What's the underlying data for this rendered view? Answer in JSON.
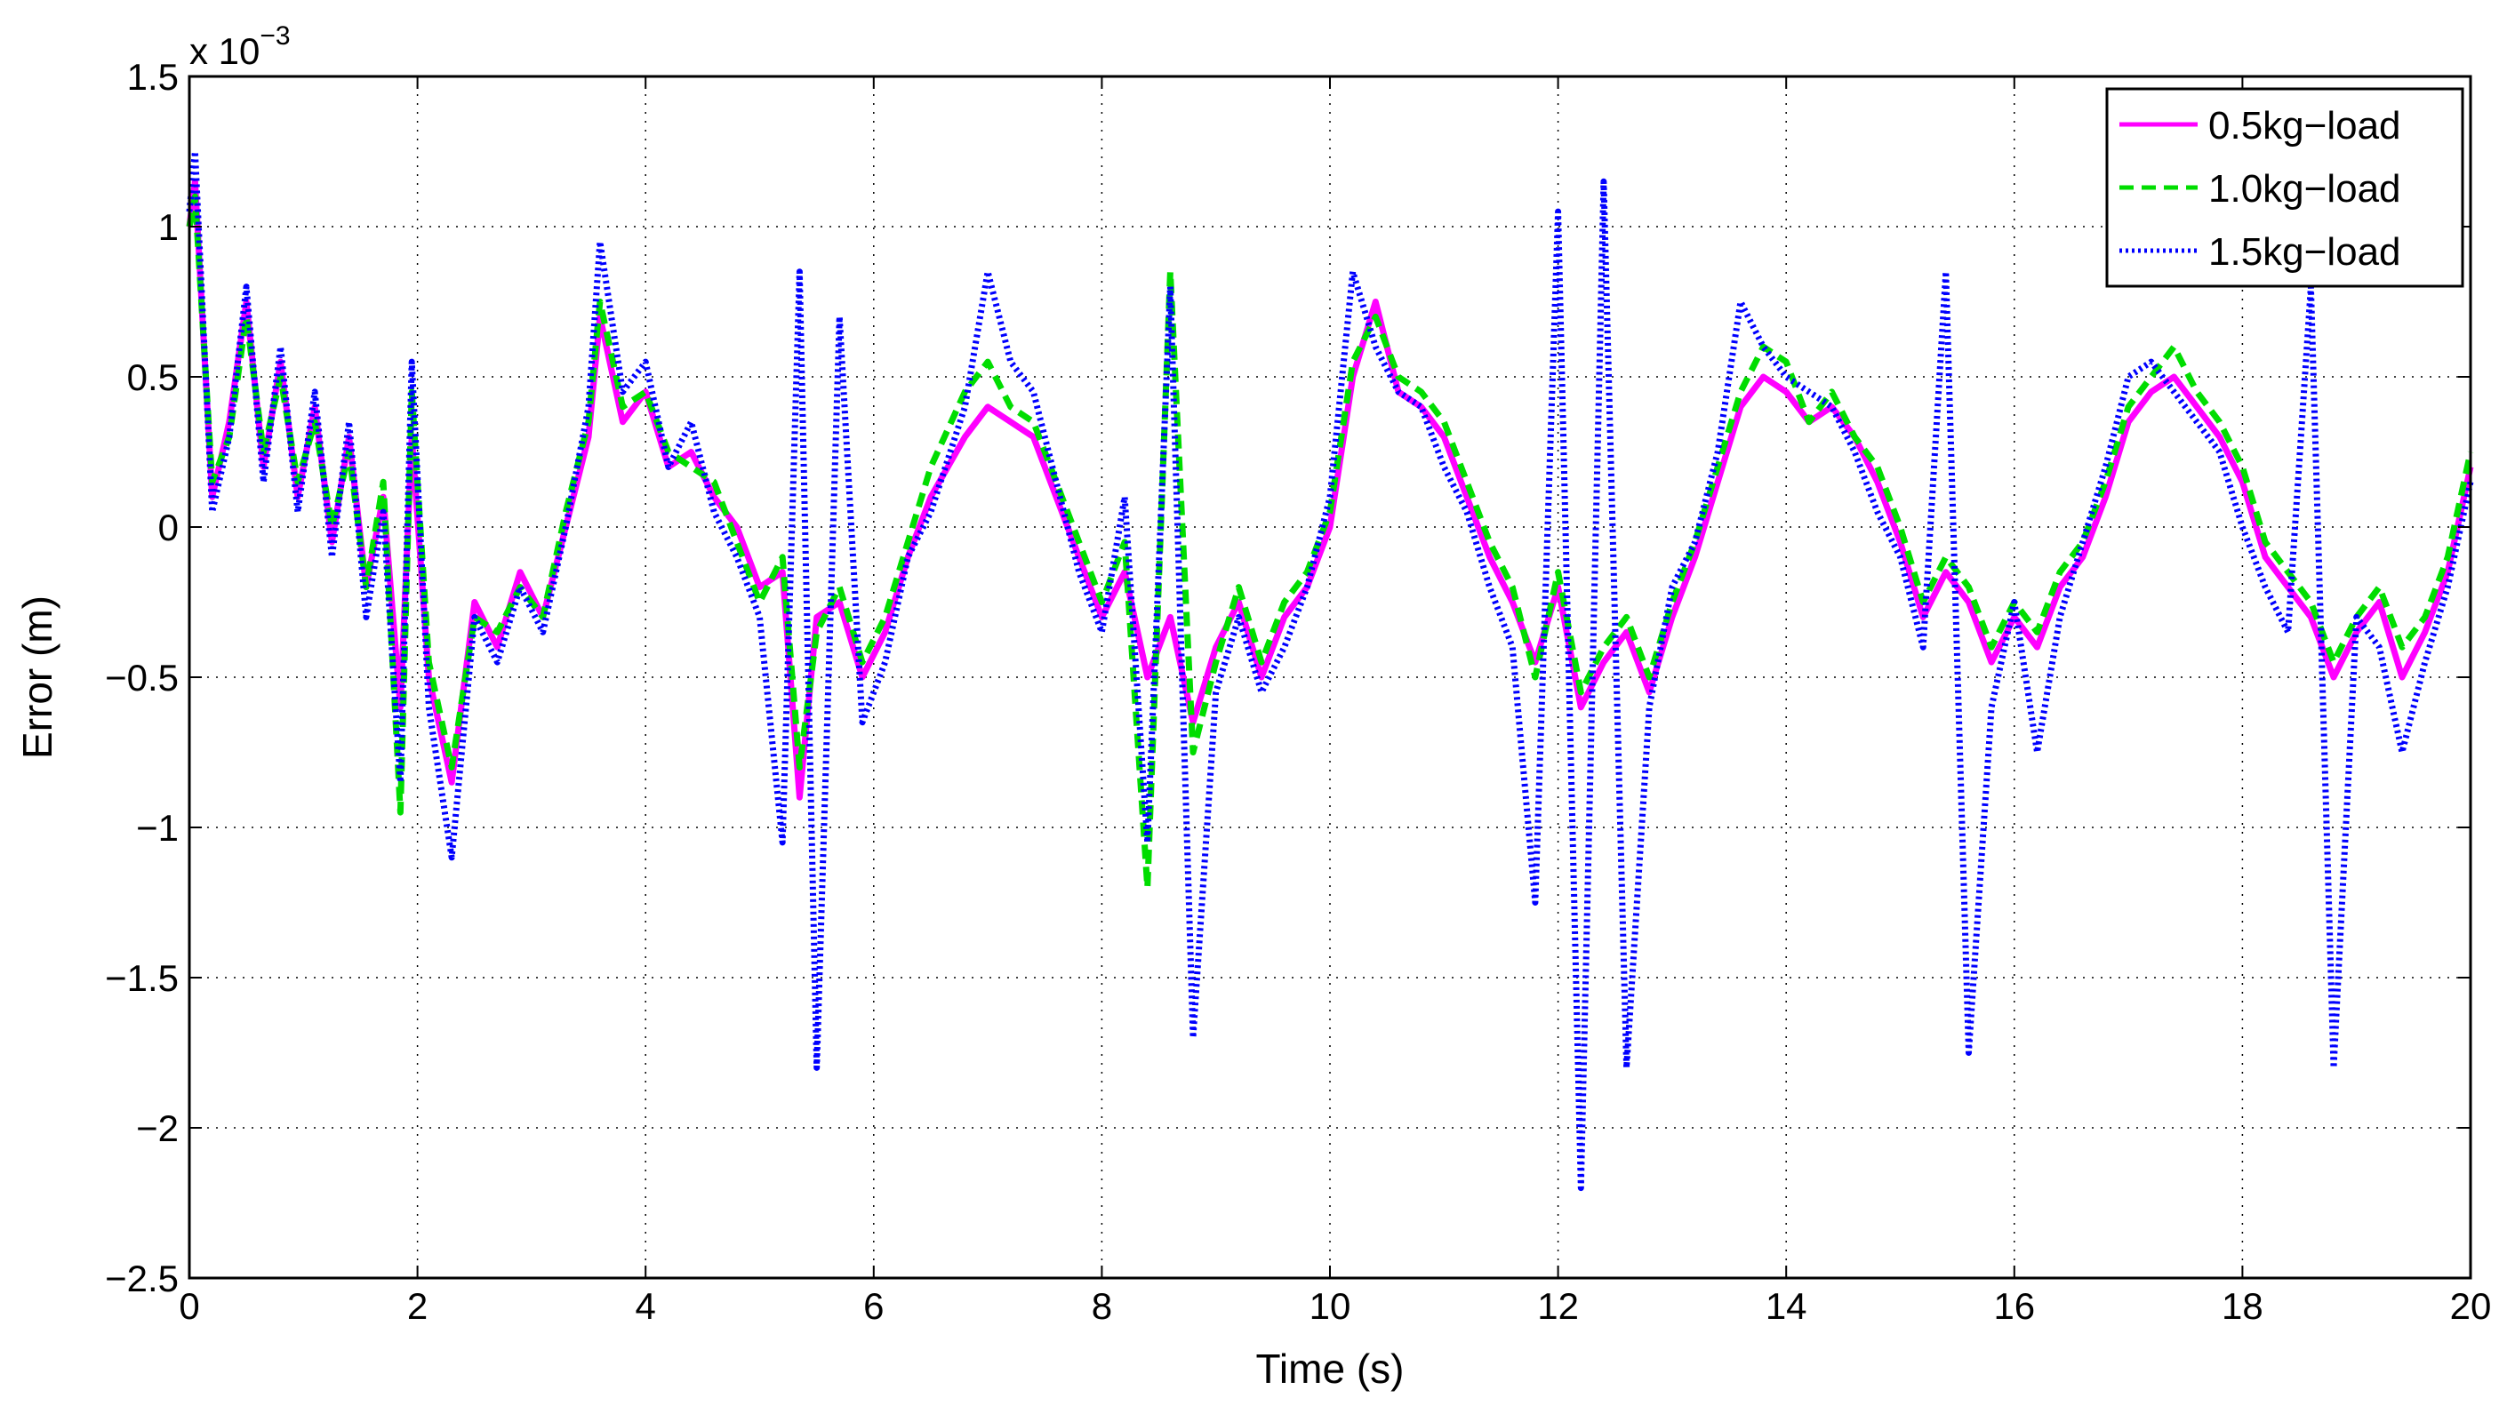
{
  "chart_data": {
    "type": "line",
    "title": "",
    "xlabel": "Time (s)",
    "ylabel": "Error (m)",
    "y_exponent_label": "x 10",
    "y_exponent_power": "−3",
    "xlim": [
      0,
      20
    ],
    "ylim": [
      -2.5,
      1.5
    ],
    "x_ticks": [
      0,
      2,
      4,
      6,
      8,
      10,
      12,
      14,
      16,
      18,
      20
    ],
    "x_tick_labels": [
      "0",
      "2",
      "4",
      "6",
      "8",
      "10",
      "12",
      "14",
      "16",
      "18",
      "20"
    ],
    "y_ticks": [
      -2.5,
      -2,
      -1.5,
      -1,
      -0.5,
      0,
      0.5,
      1,
      1.5
    ],
    "y_tick_labels": [
      "−2.5",
      "−2",
      "−1.5",
      "−1",
      "−0.5",
      "0",
      "0.5",
      "1",
      "1.5"
    ],
    "grid": true,
    "legend_position": "top-right",
    "series": [
      {
        "name": "0.5kg−load",
        "color": "#ff00ff",
        "style": "solid",
        "x": [
          0,
          0.05,
          0.2,
          0.35,
          0.5,
          0.65,
          0.8,
          0.95,
          1.1,
          1.25,
          1.4,
          1.55,
          1.7,
          1.85,
          1.95,
          2.1,
          2.3,
          2.5,
          2.7,
          2.9,
          3.1,
          3.3,
          3.5,
          3.6,
          3.8,
          4.0,
          4.2,
          4.4,
          4.6,
          4.8,
          5.0,
          5.2,
          5.35,
          5.5,
          5.7,
          5.9,
          6.1,
          6.3,
          6.5,
          6.8,
          7.0,
          7.2,
          7.4,
          7.6,
          7.8,
          8.0,
          8.2,
          8.4,
          8.6,
          8.8,
          9.0,
          9.2,
          9.4,
          9.6,
          9.8,
          10.0,
          10.2,
          10.4,
          10.6,
          10.8,
          11.0,
          11.2,
          11.4,
          11.6,
          11.8,
          12.0,
          12.2,
          12.4,
          12.6,
          12.8,
          13.0,
          13.2,
          13.4,
          13.6,
          13.8,
          14.0,
          14.2,
          14.4,
          14.6,
          14.8,
          15.0,
          15.2,
          15.4,
          15.6,
          15.8,
          16.0,
          16.2,
          16.4,
          16.6,
          16.8,
          17.0,
          17.2,
          17.4,
          17.6,
          17.8,
          18.0,
          18.2,
          18.4,
          18.6,
          18.8,
          19.0,
          19.2,
          19.4,
          19.6,
          19.8,
          20.0
        ],
        "y": [
          1.0,
          1.15,
          0.1,
          0.35,
          0.75,
          0.2,
          0.55,
          0.1,
          0.4,
          -0.05,
          0.3,
          -0.2,
          0.1,
          -0.6,
          0.3,
          -0.5,
          -0.85,
          -0.25,
          -0.4,
          -0.15,
          -0.3,
          0.0,
          0.3,
          0.7,
          0.35,
          0.45,
          0.2,
          0.25,
          0.1,
          0.0,
          -0.2,
          -0.15,
          -0.9,
          -0.3,
          -0.25,
          -0.5,
          -0.35,
          -0.1,
          0.1,
          0.3,
          0.4,
          0.35,
          0.3,
          0.1,
          -0.1,
          -0.3,
          -0.15,
          -0.5,
          -0.3,
          -0.65,
          -0.4,
          -0.25,
          -0.5,
          -0.3,
          -0.2,
          0.0,
          0.5,
          0.75,
          0.45,
          0.4,
          0.3,
          0.1,
          -0.1,
          -0.25,
          -0.45,
          -0.2,
          -0.6,
          -0.45,
          -0.35,
          -0.55,
          -0.3,
          -0.1,
          0.15,
          0.4,
          0.5,
          0.45,
          0.35,
          0.4,
          0.3,
          0.15,
          -0.05,
          -0.3,
          -0.15,
          -0.25,
          -0.45,
          -0.3,
          -0.4,
          -0.2,
          -0.1,
          0.1,
          0.35,
          0.45,
          0.5,
          0.4,
          0.3,
          0.15,
          -0.1,
          -0.2,
          -0.3,
          -0.5,
          -0.35,
          -0.25,
          -0.5,
          -0.35,
          -0.15,
          0.2
        ]
      },
      {
        "name": "1.0kg−load",
        "color": "#00dd00",
        "style": "dashed",
        "x": [
          0,
          0.05,
          0.2,
          0.35,
          0.5,
          0.65,
          0.8,
          0.95,
          1.1,
          1.25,
          1.4,
          1.55,
          1.7,
          1.85,
          1.95,
          2.1,
          2.3,
          2.5,
          2.7,
          2.9,
          3.1,
          3.3,
          3.5,
          3.6,
          3.8,
          4.0,
          4.2,
          4.4,
          4.6,
          4.8,
          5.0,
          5.2,
          5.35,
          5.5,
          5.7,
          5.9,
          6.1,
          6.3,
          6.5,
          6.8,
          7.0,
          7.2,
          7.4,
          7.6,
          7.8,
          8.0,
          8.2,
          8.4,
          8.6,
          8.8,
          9.0,
          9.2,
          9.4,
          9.6,
          9.8,
          10.0,
          10.2,
          10.4,
          10.6,
          10.8,
          11.0,
          11.2,
          11.4,
          11.6,
          11.8,
          12.0,
          12.2,
          12.4,
          12.6,
          12.8,
          13.0,
          13.2,
          13.4,
          13.6,
          13.8,
          14.0,
          14.2,
          14.4,
          14.6,
          14.8,
          15.0,
          15.2,
          15.4,
          15.6,
          15.8,
          16.0,
          16.2,
          16.4,
          16.6,
          16.8,
          17.0,
          17.2,
          17.4,
          17.6,
          17.8,
          18.0,
          18.2,
          18.4,
          18.6,
          18.8,
          19.0,
          19.2,
          19.4,
          19.6,
          19.8,
          20.0
        ],
        "y": [
          1.0,
          1.1,
          0.15,
          0.3,
          0.7,
          0.25,
          0.5,
          0.15,
          0.35,
          0.0,
          0.25,
          -0.2,
          0.15,
          -0.95,
          0.45,
          -0.45,
          -0.8,
          -0.3,
          -0.35,
          -0.2,
          -0.3,
          0.05,
          0.35,
          0.75,
          0.4,
          0.45,
          0.25,
          0.2,
          0.15,
          -0.05,
          -0.25,
          -0.1,
          -0.8,
          -0.35,
          -0.2,
          -0.45,
          -0.3,
          -0.05,
          0.2,
          0.45,
          0.55,
          0.4,
          0.35,
          0.15,
          -0.05,
          -0.25,
          -0.05,
          -1.2,
          0.85,
          -0.75,
          -0.45,
          -0.2,
          -0.45,
          -0.25,
          -0.15,
          0.05,
          0.55,
          0.7,
          0.5,
          0.45,
          0.35,
          0.15,
          -0.05,
          -0.2,
          -0.5,
          -0.15,
          -0.55,
          -0.4,
          -0.3,
          -0.5,
          -0.25,
          -0.05,
          0.2,
          0.45,
          0.6,
          0.55,
          0.35,
          0.45,
          0.3,
          0.2,
          0.0,
          -0.25,
          -0.1,
          -0.2,
          -0.4,
          -0.25,
          -0.35,
          -0.15,
          -0.05,
          0.15,
          0.4,
          0.5,
          0.6,
          0.45,
          0.35,
          0.2,
          -0.05,
          -0.15,
          -0.25,
          -0.45,
          -0.3,
          -0.2,
          -0.4,
          -0.3,
          -0.1,
          0.25
        ]
      },
      {
        "name": "1.5kg−load",
        "color": "#0000ff",
        "style": "dotted",
        "x": [
          0,
          0.05,
          0.2,
          0.35,
          0.5,
          0.65,
          0.8,
          0.95,
          1.1,
          1.25,
          1.4,
          1.55,
          1.7,
          1.85,
          1.95,
          2.1,
          2.3,
          2.5,
          2.7,
          2.9,
          3.1,
          3.3,
          3.5,
          3.6,
          3.8,
          4.0,
          4.2,
          4.4,
          4.6,
          4.8,
          5.0,
          5.2,
          5.35,
          5.5,
          5.7,
          5.9,
          6.1,
          6.3,
          6.5,
          6.8,
          7.0,
          7.2,
          7.4,
          7.6,
          7.8,
          8.0,
          8.2,
          8.4,
          8.6,
          8.8,
          9.0,
          9.2,
          9.4,
          9.6,
          9.8,
          10.0,
          10.2,
          10.4,
          10.6,
          10.8,
          11.0,
          11.2,
          11.4,
          11.6,
          11.8,
          12.0,
          12.2,
          12.4,
          12.6,
          12.8,
          13.0,
          13.2,
          13.4,
          13.6,
          13.8,
          14.0,
          14.2,
          14.4,
          14.6,
          14.8,
          15.0,
          15.2,
          15.4,
          15.6,
          15.8,
          16.0,
          16.2,
          16.4,
          16.6,
          16.8,
          17.0,
          17.2,
          17.4,
          17.6,
          17.8,
          18.0,
          18.2,
          18.4,
          18.6,
          18.8,
          19.0,
          19.2,
          19.4,
          19.6,
          19.8,
          20.0
        ],
        "y": [
          1.05,
          1.25,
          0.05,
          0.3,
          0.8,
          0.15,
          0.6,
          0.05,
          0.45,
          -0.1,
          0.35,
          -0.3,
          0.05,
          -0.85,
          0.55,
          -0.6,
          -1.1,
          -0.3,
          -0.45,
          -0.2,
          -0.35,
          0.0,
          0.4,
          0.95,
          0.45,
          0.55,
          0.2,
          0.35,
          0.05,
          -0.1,
          -0.3,
          -1.05,
          0.85,
          -1.8,
          0.7,
          -0.65,
          -0.45,
          -0.1,
          0.05,
          0.4,
          0.85,
          0.55,
          0.45,
          0.15,
          -0.15,
          -0.35,
          0.1,
          -1.05,
          0.8,
          -1.7,
          -0.55,
          -0.3,
          -0.55,
          -0.4,
          -0.2,
          0.1,
          0.85,
          0.6,
          0.45,
          0.4,
          0.2,
          0.05,
          -0.2,
          -0.4,
          -1.25,
          1.05,
          -2.2,
          1.15,
          -1.8,
          -0.6,
          -0.2,
          -0.05,
          0.25,
          0.75,
          0.6,
          0.5,
          0.45,
          0.4,
          0.25,
          0.05,
          -0.1,
          -0.4,
          0.85,
          -1.75,
          -0.6,
          -0.25,
          -0.75,
          -0.3,
          -0.05,
          0.2,
          0.5,
          0.55,
          0.45,
          0.35,
          0.25,
          0.0,
          -0.2,
          -0.35,
          0.8,
          -1.8,
          -0.3,
          -0.4,
          -0.75,
          -0.45,
          -0.2,
          0.15
        ]
      }
    ]
  }
}
